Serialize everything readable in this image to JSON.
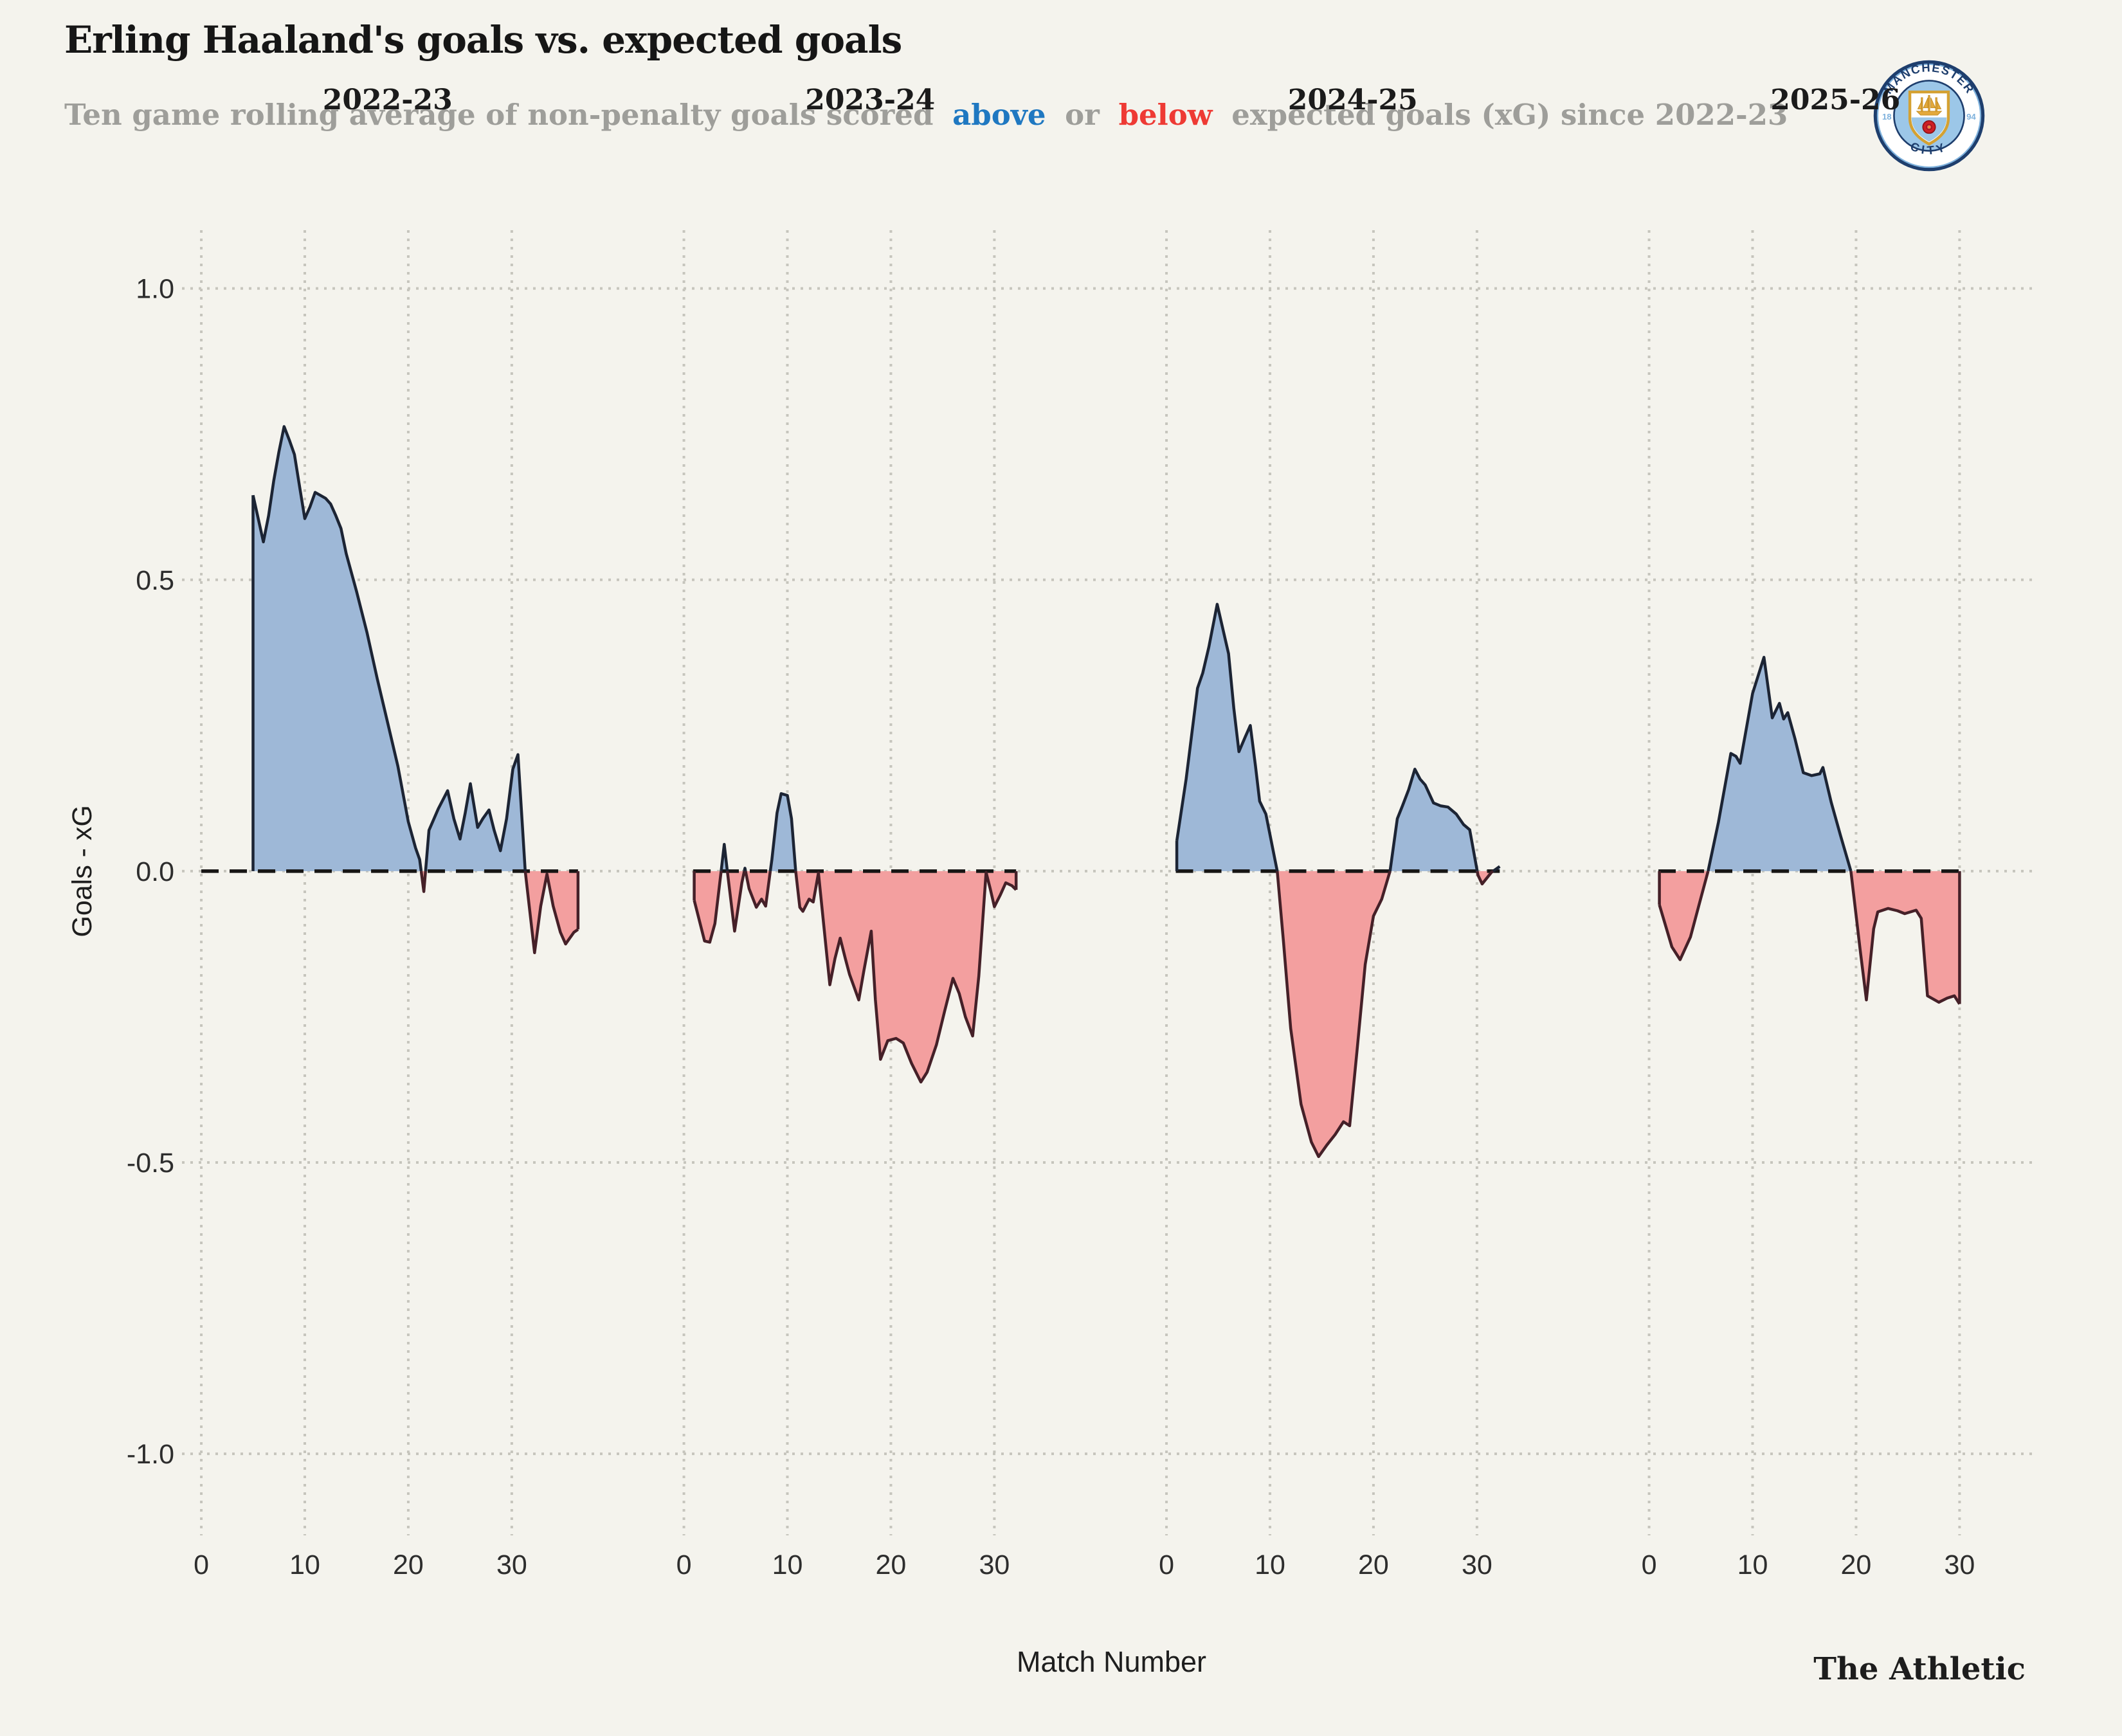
{
  "header": {
    "title": "Erling Haaland's goals vs. expected goals",
    "subtitle_prefix": "Ten game rolling average of non-penalty goals scored",
    "subtitle_above": "above",
    "subtitle_or": "or",
    "subtitle_below": "below",
    "subtitle_suffix": "expected goals (xG) since 2022-23"
  },
  "branding": {
    "wordmark": "The Athletic",
    "club_badge": {
      "name": "manchester-city-badge",
      "top_text": "MANCHESTER",
      "bottom_text": "CITY",
      "left_text": "18",
      "right_text": "94"
    }
  },
  "colors": {
    "background": "#f4f3ed",
    "above_fill": "#9eb8d7",
    "below_fill": "#f39f9f",
    "above_stroke": "#1c2434",
    "below_stroke": "#452028",
    "zero_line": "#161514",
    "gridline": "#c6c5bd",
    "subtitle_gray": "#9e9e9a",
    "accent_above": "#1f78c1",
    "accent_below": "#ee3a34",
    "badge_navy": "#1e3e6d",
    "badge_lightblue": "#9cc7e8",
    "badge_gold": "#d4a132",
    "badge_rose_red": "#cf1f25"
  },
  "chart_data": {
    "type": "area",
    "title": "Erling Haaland's goals vs. expected goals",
    "subtitle": "Ten game rolling average of non-penalty goals scored above or below expected goals (xG) since 2022-23",
    "xlabel": "Match Number",
    "ylabel": "Goals - xG",
    "xlim": [
      -0.5,
      36.5
    ],
    "ylim": [
      -1.14,
      1.1
    ],
    "grid": "dotted",
    "zero_line_style": "dashed",
    "yticks": [
      1.0,
      0.5,
      0.0,
      -0.5,
      -1.0
    ],
    "ytick_labels": [
      "1.0",
      "0.5",
      "0.0",
      "-0.5",
      "-1.0"
    ],
    "xticks": [
      0,
      10,
      20,
      30
    ],
    "xtick_labels": [
      "0",
      "10",
      "20",
      "30"
    ],
    "panels": [
      {
        "season": "2022-23",
        "zero_span": [
          0,
          36.4
        ],
        "points": [
          [
            5,
            0.645
          ],
          [
            5.5,
            0.605
          ],
          [
            6,
            0.565
          ],
          [
            6.5,
            0.61
          ],
          [
            7,
            0.67
          ],
          [
            7.5,
            0.72
          ],
          [
            8,
            0.763
          ],
          [
            8.5,
            0.74
          ],
          [
            9,
            0.715
          ],
          [
            9.5,
            0.66
          ],
          [
            10,
            0.605
          ],
          [
            10.5,
            0.625
          ],
          [
            11,
            0.65
          ],
          [
            11.5,
            0.645
          ],
          [
            12,
            0.64
          ],
          [
            12.5,
            0.63
          ],
          [
            13,
            0.61
          ],
          [
            13.5,
            0.588
          ],
          [
            14,
            0.545
          ],
          [
            15,
            0.48
          ],
          [
            16,
            0.41
          ],
          [
            17,
            0.33
          ],
          [
            18,
            0.255
          ],
          [
            19,
            0.18
          ],
          [
            20,
            0.085
          ],
          [
            20.7,
            0.04
          ],
          [
            21.1,
            0.02
          ],
          [
            21.5,
            -0.035
          ],
          [
            22,
            0.07
          ],
          [
            22.9,
            0.107
          ],
          [
            23.8,
            0.138
          ],
          [
            24.4,
            0.09
          ],
          [
            25,
            0.055
          ],
          [
            25.5,
            0.1
          ],
          [
            26,
            0.15
          ],
          [
            26.7,
            0.075
          ],
          [
            27.2,
            0.09
          ],
          [
            27.8,
            0.105
          ],
          [
            28.3,
            0.07
          ],
          [
            28.9,
            0.035
          ],
          [
            29.5,
            0.09
          ],
          [
            30.1,
            0.175
          ],
          [
            30.6,
            0.2
          ],
          [
            31.3,
            0
          ],
          [
            32.2,
            -0.14
          ],
          [
            32.8,
            -0.06
          ],
          [
            33.4,
            -0.005
          ],
          [
            34,
            -0.06
          ],
          [
            34.7,
            -0.105
          ],
          [
            35.2,
            -0.125
          ],
          [
            36,
            -0.105
          ],
          [
            36.4,
            -0.1
          ]
        ]
      },
      {
        "season": "2023-24",
        "zero_span": [
          0.9,
          32.1
        ],
        "points": [
          [
            1,
            -0.05
          ],
          [
            2,
            -0.12
          ],
          [
            2.5,
            -0.122
          ],
          [
            3,
            -0.09
          ],
          [
            3.6,
            0
          ],
          [
            3.9,
            0.046
          ],
          [
            4.2,
            0
          ],
          [
            4.9,
            -0.103
          ],
          [
            5.6,
            -0.02
          ],
          [
            5.9,
            0.005
          ],
          [
            6.3,
            -0.03
          ],
          [
            7,
            -0.062
          ],
          [
            7.5,
            -0.048
          ],
          [
            7.9,
            -0.06
          ],
          [
            8.5,
            0.02
          ],
          [
            9,
            0.1
          ],
          [
            9.4,
            0.133
          ],
          [
            10,
            0.13
          ],
          [
            10.4,
            0.09
          ],
          [
            10.8,
            0
          ],
          [
            11.2,
            -0.062
          ],
          [
            11.5,
            -0.069
          ],
          [
            12.1,
            -0.048
          ],
          [
            12.5,
            -0.053
          ],
          [
            13,
            -0.003
          ],
          [
            13.5,
            -0.09
          ],
          [
            14.1,
            -0.195
          ],
          [
            14.6,
            -0.15
          ],
          [
            15.1,
            -0.115
          ],
          [
            15.6,
            -0.15
          ],
          [
            16,
            -0.177
          ],
          [
            16.9,
            -0.221
          ],
          [
            17.4,
            -0.17
          ],
          [
            18.1,
            -0.103
          ],
          [
            18.5,
            -0.22
          ],
          [
            19,
            -0.323
          ],
          [
            19.7,
            -0.291
          ],
          [
            20.5,
            -0.287
          ],
          [
            21.2,
            -0.295
          ],
          [
            22,
            -0.33
          ],
          [
            22.9,
            -0.362
          ],
          [
            23.5,
            -0.345
          ],
          [
            24.4,
            -0.298
          ],
          [
            25.2,
            -0.24
          ],
          [
            26,
            -0.184
          ],
          [
            26.6,
            -0.21
          ],
          [
            27.2,
            -0.25
          ],
          [
            27.9,
            -0.283
          ],
          [
            28.5,
            -0.18
          ],
          [
            29.2,
            -0.002
          ],
          [
            29.6,
            -0.03
          ],
          [
            30,
            -0.061
          ],
          [
            30.6,
            -0.04
          ],
          [
            31.1,
            -0.02
          ],
          [
            31.7,
            -0.025
          ],
          [
            32.1,
            -0.032
          ]
        ]
      },
      {
        "season": "2024-25",
        "zero_span": [
          0.9,
          32.2
        ],
        "points": [
          [
            1,
            0.052
          ],
          [
            1.9,
            0.158
          ],
          [
            3,
            0.314
          ],
          [
            3.5,
            0.34
          ],
          [
            4.1,
            0.385
          ],
          [
            4.9,
            0.458
          ],
          [
            6,
            0.373
          ],
          [
            6.5,
            0.28
          ],
          [
            7,
            0.205
          ],
          [
            7.6,
            0.23
          ],
          [
            8.1,
            0.25
          ],
          [
            8.6,
            0.18
          ],
          [
            9,
            0.12
          ],
          [
            9.6,
            0.098
          ],
          [
            10.7,
            0
          ],
          [
            11.3,
            -0.12
          ],
          [
            12,
            -0.27
          ],
          [
            13,
            -0.4
          ],
          [
            14,
            -0.465
          ],
          [
            14.7,
            -0.49
          ],
          [
            15.5,
            -0.47
          ],
          [
            16.3,
            -0.452
          ],
          [
            17.1,
            -0.43
          ],
          [
            17.7,
            -0.437
          ],
          [
            18.4,
            -0.31
          ],
          [
            19.2,
            -0.16
          ],
          [
            20,
            -0.077
          ],
          [
            20.8,
            -0.048
          ],
          [
            21.6,
            0
          ],
          [
            22.3,
            0.09
          ],
          [
            22.8,
            0.112
          ],
          [
            23.4,
            0.14
          ],
          [
            24,
            0.175
          ],
          [
            24.5,
            0.158
          ],
          [
            25,
            0.148
          ],
          [
            25.8,
            0.117
          ],
          [
            26.5,
            0.112
          ],
          [
            27.2,
            0.11
          ],
          [
            28,
            0.098
          ],
          [
            28.7,
            0.08
          ],
          [
            29.3,
            0.071
          ],
          [
            30.1,
            -0.007
          ],
          [
            30.5,
            -0.022
          ],
          [
            31.4,
            -0.002
          ],
          [
            32.2,
            0.008
          ]
        ]
      },
      {
        "season": "2025-26",
        "zero_span": [
          0.9,
          30
        ],
        "points": [
          [
            1,
            -0.058
          ],
          [
            2.2,
            -0.13
          ],
          [
            3,
            -0.152
          ],
          [
            4,
            -0.113
          ],
          [
            4.9,
            -0.053
          ],
          [
            5.7,
            0
          ],
          [
            6.7,
            0.084
          ],
          [
            7.9,
            0.202
          ],
          [
            8.4,
            0.197
          ],
          [
            8.8,
            0.185
          ],
          [
            10,
            0.305
          ],
          [
            11.1,
            0.367
          ],
          [
            11.9,
            0.263
          ],
          [
            12.6,
            0.288
          ],
          [
            13,
            0.261
          ],
          [
            13.4,
            0.272
          ],
          [
            14.1,
            0.227
          ],
          [
            14.9,
            0.169
          ],
          [
            15.7,
            0.164
          ],
          [
            16.5,
            0.167
          ],
          [
            16.8,
            0.178
          ],
          [
            17.6,
            0.118
          ],
          [
            18.5,
            0.061
          ],
          [
            19.5,
            0
          ],
          [
            20.4,
            -0.136
          ],
          [
            21,
            -0.221
          ],
          [
            21.7,
            -0.099
          ],
          [
            22.1,
            -0.07
          ],
          [
            23.1,
            -0.064
          ],
          [
            24,
            -0.068
          ],
          [
            24.7,
            -0.073
          ],
          [
            25.8,
            -0.067
          ],
          [
            26.3,
            -0.081
          ],
          [
            26.9,
            -0.214
          ],
          [
            28,
            -0.225
          ],
          [
            28.8,
            -0.218
          ],
          [
            29.5,
            -0.214
          ],
          [
            30,
            -0.228
          ]
        ]
      }
    ]
  }
}
